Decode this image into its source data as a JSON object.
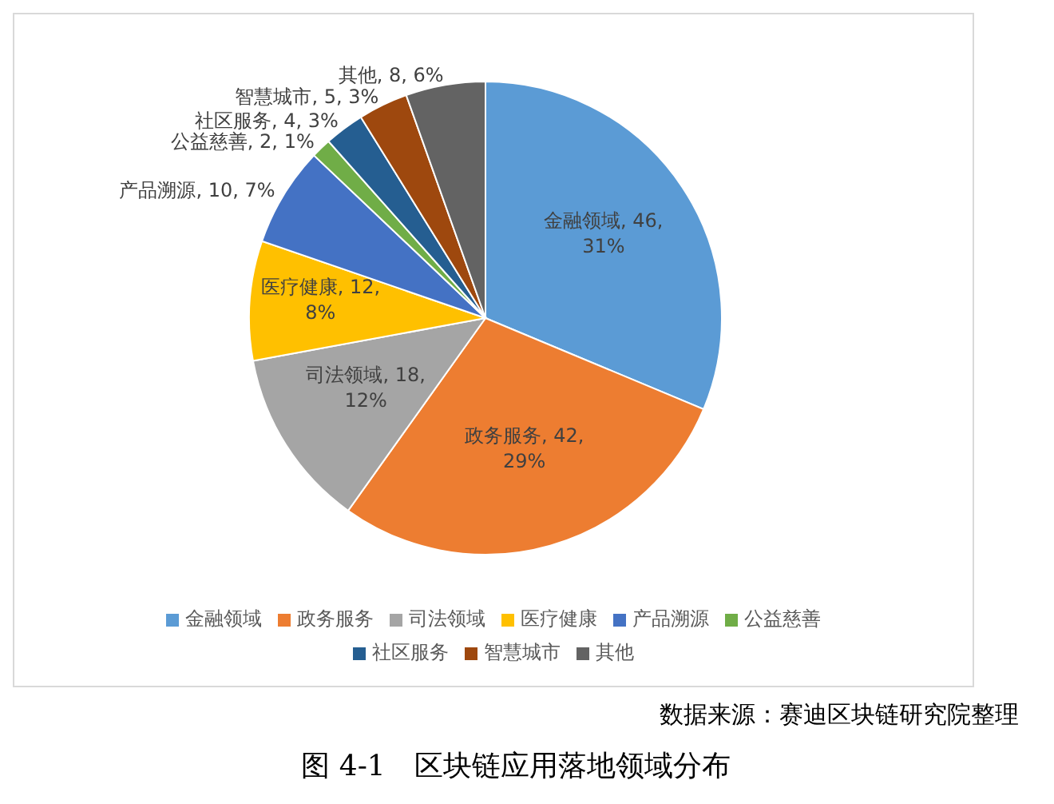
{
  "chart_data": {
    "type": "pie",
    "title": "图 4-1　区块链应用落地领域分布",
    "categories": [
      "金融领域",
      "政务服务",
      "司法领域",
      "医疗健康",
      "产品溯源",
      "公益慈善",
      "社区服务",
      "智慧城市",
      "其他"
    ],
    "values": [
      46,
      42,
      18,
      12,
      10,
      2,
      4,
      5,
      8
    ],
    "colors": [
      "#5b9bd5",
      "#ed7d31",
      "#a5a5a5",
      "#ffc000",
      "#4472c4",
      "#70ad47",
      "#255e91",
      "#9e480e",
      "#636363"
    ],
    "value_labels": [
      "金融领域, 46, 31%",
      "政务服务, 42, 29%",
      "司法领域, 18, 12%",
      "医疗健康, 12, 8%",
      "产品溯源, 10, 7%",
      "公益慈善, 2, 1%",
      "社区服务, 4, 3%",
      "智慧城市, 5, 3%",
      "其他, 8, 6%"
    ],
    "legend": "bottom",
    "annotations": [
      "数据来源：赛迪区块链研究院整理"
    ]
  }
}
